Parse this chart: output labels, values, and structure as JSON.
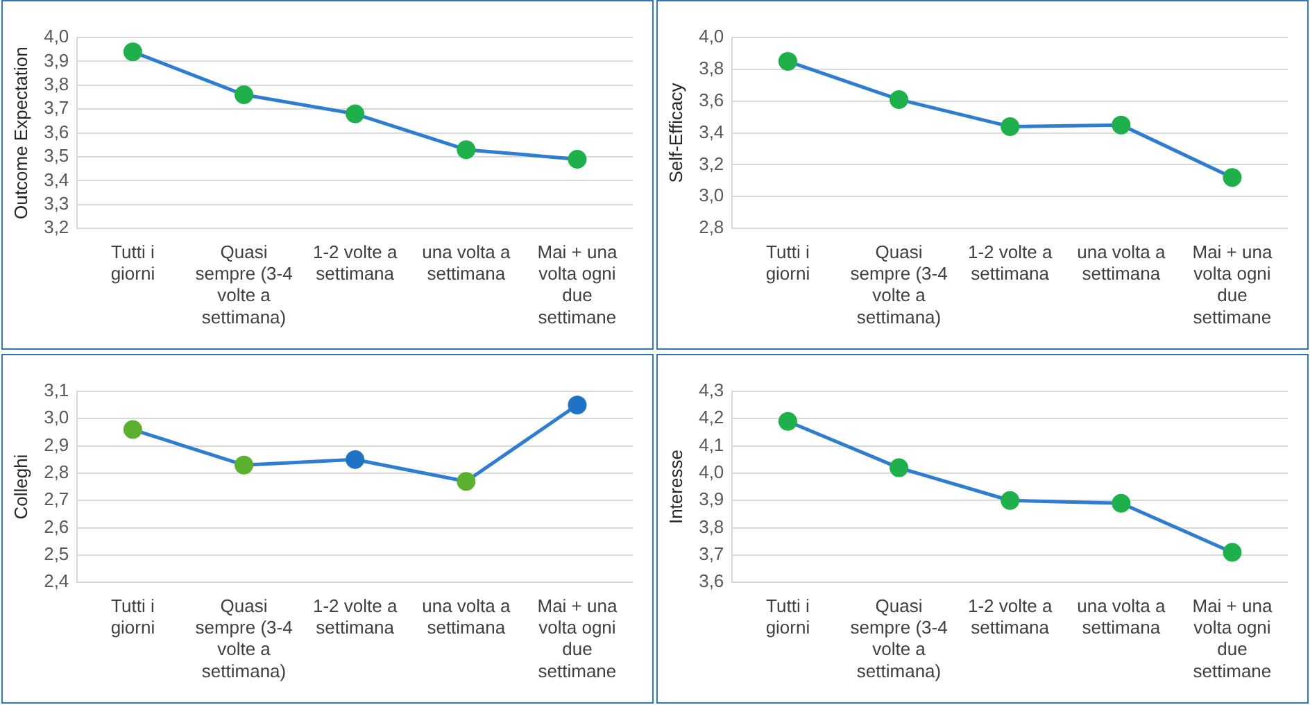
{
  "chart_data": [
    {
      "type": "line",
      "ylabel": "Outcome Expectation",
      "categories": [
        "Tutti i giorni",
        "Quasi sempre (3-4 volte a settimana)",
        "1-2 volte a settimana",
        "una volta a settimana",
        "Mai + una volta ogni due settimane"
      ],
      "series": [
        {
          "color": "#2e7dd1",
          "colors": [
            "#1fb04c",
            "#1fb04c",
            "#1fb04c",
            "#1fb04c",
            "#1fb04c"
          ],
          "values": [
            3.94,
            3.76,
            3.68,
            3.53,
            3.49
          ]
        }
      ],
      "ylim": [
        3.2,
        4.0
      ],
      "yticks": [
        {
          "value": 3.2,
          "label": "3,2"
        },
        {
          "value": 3.3,
          "label": "3,3"
        },
        {
          "value": 3.4,
          "label": "3,4"
        },
        {
          "value": 3.5,
          "label": "3,5"
        },
        {
          "value": 3.6,
          "label": "3,6"
        },
        {
          "value": 3.7,
          "label": "3,7"
        },
        {
          "value": 3.8,
          "label": "3,8"
        },
        {
          "value": 3.9,
          "label": "3,9"
        },
        {
          "value": 4.0,
          "label": "4,0"
        }
      ],
      "grid": "y",
      "legend": false,
      "marker": "circle"
    },
    {
      "type": "line",
      "ylabel": "Self-Efficacy",
      "categories": [
        "Tutti i giorni",
        "Quasi sempre (3-4 volte a settimana)",
        "1-2 volte a settimana",
        "una volta a settimana",
        "Mai + una volta ogni due settimane"
      ],
      "series": [
        {
          "color": "#2e7dd1",
          "colors": [
            "#1fb04c",
            "#1fb04c",
            "#1fb04c",
            "#1fb04c",
            "#1fb04c"
          ],
          "values": [
            3.85,
            3.61,
            3.44,
            3.45,
            3.12
          ]
        }
      ],
      "ylim": [
        2.8,
        4.0
      ],
      "yticks": [
        {
          "value": 2.8,
          "label": "2,8"
        },
        {
          "value": 3.0,
          "label": "3,0"
        },
        {
          "value": 3.2,
          "label": "3,2"
        },
        {
          "value": 3.4,
          "label": "3,4"
        },
        {
          "value": 3.6,
          "label": "3,6"
        },
        {
          "value": 3.8,
          "label": "3,8"
        },
        {
          "value": 4.0,
          "label": "4,0"
        }
      ],
      "grid": "y",
      "legend": false,
      "marker": "circle"
    },
    {
      "type": "line",
      "ylabel": "Colleghi",
      "categories": [
        "Tutti i giorni",
        "Quasi sempre (3-4 volte a settimana)",
        "1-2 volte a settimana",
        "una volta a settimana",
        "Mai + una volta ogni due settimane"
      ],
      "series": [
        {
          "color": "#2e7dd1",
          "colors": [
            "#5cb030",
            "#5cb030",
            "#1f72c4",
            "#5cb030",
            "#1f72c4"
          ],
          "values": [
            2.96,
            2.83,
            2.85,
            2.77,
            3.05
          ]
        }
      ],
      "ylim": [
        2.4,
        3.1
      ],
      "yticks": [
        {
          "value": 2.4,
          "label": "2,4"
        },
        {
          "value": 2.5,
          "label": "2,5"
        },
        {
          "value": 2.6,
          "label": "2,6"
        },
        {
          "value": 2.7,
          "label": "2,7"
        },
        {
          "value": 2.8,
          "label": "2,8"
        },
        {
          "value": 2.9,
          "label": "2,9"
        },
        {
          "value": 3.0,
          "label": "3,0"
        },
        {
          "value": 3.1,
          "label": "3,1"
        }
      ],
      "grid": "y",
      "legend": false,
      "marker": "circle"
    },
    {
      "type": "line",
      "ylabel": "Interesse",
      "categories": [
        "Tutti i giorni",
        "Quasi sempre (3-4 volte a settimana)",
        "1-2 volte a settimana",
        "una volta a settimana",
        "Mai + una volta ogni due settimane"
      ],
      "series": [
        {
          "color": "#2e7dd1",
          "colors": [
            "#1fb04c",
            "#1fb04c",
            "#1fb04c",
            "#1fb04c",
            "#1fb04c"
          ],
          "values": [
            4.19,
            4.02,
            3.9,
            3.89,
            3.71
          ]
        }
      ],
      "ylim": [
        3.6,
        4.3
      ],
      "yticks": [
        {
          "value": 3.6,
          "label": "3,6"
        },
        {
          "value": 3.7,
          "label": "3,7"
        },
        {
          "value": 3.8,
          "label": "3,8"
        },
        {
          "value": 3.9,
          "label": "3,9"
        },
        {
          "value": 4.0,
          "label": "4,0"
        },
        {
          "value": 4.1,
          "label": "4,1"
        },
        {
          "value": 4.2,
          "label": "4,2"
        },
        {
          "value": 4.3,
          "label": "4,3"
        }
      ],
      "grid": "y",
      "legend": false,
      "marker": "circle"
    }
  ]
}
